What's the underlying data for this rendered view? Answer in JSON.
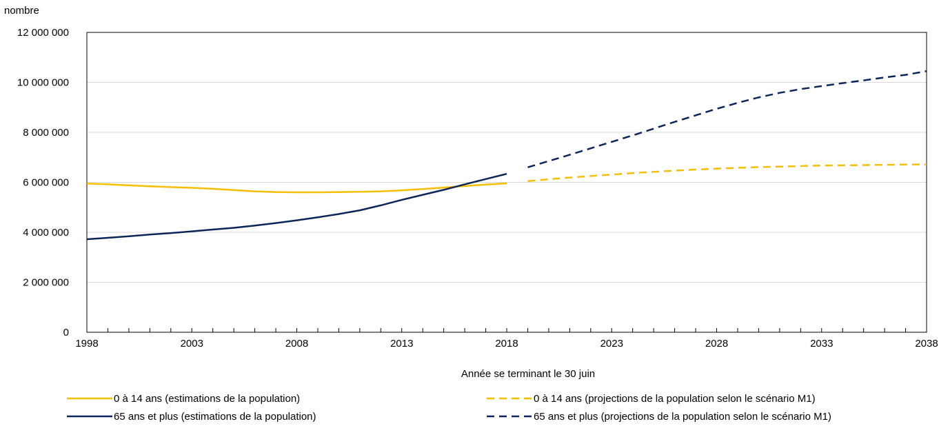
{
  "chart_data": {
    "type": "line",
    "ylabel": "nombre",
    "xlabel": "Année se terminant le 30 juin",
    "xlim": [
      1998,
      2038
    ],
    "ylim": [
      0,
      12000000
    ],
    "y_ticks": [
      0,
      2000000,
      4000000,
      6000000,
      8000000,
      10000000,
      12000000
    ],
    "y_tick_labels": [
      "0",
      "2 000 000",
      "4 000 000",
      "6 000 000",
      "8 000 000",
      "10 000 000",
      "12 000 000"
    ],
    "x_ticks": [
      1998,
      2003,
      2008,
      2013,
      2018,
      2023,
      2028,
      2033,
      2038
    ],
    "x_tick_labels": [
      "1998",
      "2003",
      "2008",
      "2013",
      "2018",
      "2023",
      "2028",
      "2033",
      "2038"
    ],
    "grid": "horizontal",
    "legend_position": "bottom",
    "series": [
      {
        "name": "0 à 14 ans (estimations de la population)",
        "color": "#F5BE00",
        "dash": "solid",
        "x": [
          1998,
          1999,
          2000,
          2001,
          2002,
          2003,
          2004,
          2005,
          2006,
          2007,
          2008,
          2009,
          2010,
          2011,
          2012,
          2013,
          2014,
          2015,
          2016,
          2017,
          2018
        ],
        "y": [
          5950000,
          5920000,
          5880000,
          5840000,
          5810000,
          5780000,
          5740000,
          5690000,
          5640000,
          5610000,
          5600000,
          5600000,
          5610000,
          5620000,
          5640000,
          5680000,
          5730000,
          5790000,
          5850000,
          5910000,
          5960000
        ]
      },
      {
        "name": "65 ans et plus (estimations de la population)",
        "color": "#0B2559",
        "dash": "solid",
        "x": [
          1998,
          1999,
          2000,
          2001,
          2002,
          2003,
          2004,
          2005,
          2006,
          2007,
          2008,
          2009,
          2010,
          2011,
          2012,
          2013,
          2014,
          2015,
          2016,
          2017,
          2018
        ],
        "y": [
          3720000,
          3780000,
          3840000,
          3910000,
          3970000,
          4040000,
          4110000,
          4180000,
          4270000,
          4370000,
          4480000,
          4600000,
          4730000,
          4880000,
          5080000,
          5300000,
          5500000,
          5700000,
          5920000,
          6130000,
          6340000
        ]
      },
      {
        "name": "0 à 14 ans (projections de la population selon le scénario M1)",
        "color": "#F5BE00",
        "dash": "dashed",
        "x": [
          2019,
          2020,
          2021,
          2022,
          2023,
          2024,
          2025,
          2026,
          2027,
          2028,
          2029,
          2030,
          2031,
          2032,
          2033,
          2034,
          2035,
          2036,
          2037,
          2038
        ],
        "y": [
          6050000,
          6120000,
          6190000,
          6250000,
          6310000,
          6370000,
          6420000,
          6470000,
          6510000,
          6550000,
          6580000,
          6610000,
          6630000,
          6650000,
          6670000,
          6680000,
          6690000,
          6700000,
          6710000,
          6720000
        ]
      },
      {
        "name": "65 ans et plus (projections de la population selon le scénario M1)",
        "color": "#0B2559",
        "dash": "dashed",
        "x": [
          2019,
          2020,
          2021,
          2022,
          2023,
          2024,
          2025,
          2026,
          2027,
          2028,
          2029,
          2030,
          2031,
          2032,
          2033,
          2034,
          2035,
          2036,
          2037,
          2038
        ],
        "y": [
          6600000,
          6850000,
          7100000,
          7360000,
          7620000,
          7880000,
          8150000,
          8420000,
          8680000,
          8940000,
          9180000,
          9400000,
          9580000,
          9730000,
          9850000,
          9970000,
          10080000,
          10200000,
          10300000,
          10450000
        ]
      }
    ]
  }
}
